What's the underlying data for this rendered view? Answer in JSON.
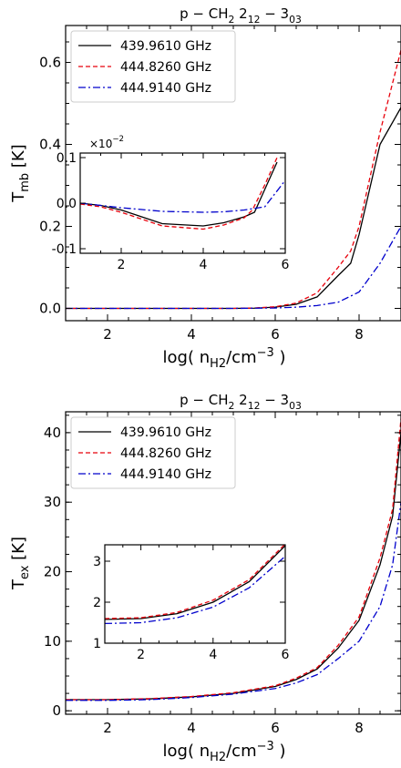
{
  "chart_data": [
    {
      "type": "line",
      "title": [
        "p − CH",
        "2",
        " 2",
        "12",
        " − 3",
        "03"
      ],
      "xlabel": [
        "log( n",
        "H",
        "2",
        "/cm",
        "−3",
        " )"
      ],
      "ylabel": [
        "T",
        "mb",
        " [K]"
      ],
      "xlim": [
        1,
        9
      ],
      "ylim": [
        -0.03,
        0.69
      ],
      "xticks": [
        2,
        4,
        6,
        8
      ],
      "xtick_labels": [
        "2",
        "4",
        "6",
        "8"
      ],
      "yticks": [
        0.0,
        0.2,
        0.4,
        0.6
      ],
      "ytick_labels": [
        "0.0",
        "0.2",
        "0.4",
        "0.6"
      ],
      "legend_position": "top-left",
      "series": [
        {
          "name": "439.9610 GHz",
          "color": "#000000",
          "dash": "solid",
          "x": [
            1,
            2,
            3,
            4,
            5,
            5.5,
            6,
            6.5,
            7,
            7.5,
            7.8,
            8,
            8.5,
            9
          ],
          "y": [
            0.0,
            0.0,
            0.0,
            0.0,
            0.0,
            0.0005,
            0.003,
            0.01,
            0.028,
            0.08,
            0.11,
            0.18,
            0.4,
            0.49
          ]
        },
        {
          "name": "444.8260 GHz",
          "color": "#e8000b",
          "dash": "dashed",
          "x": [
            1,
            2,
            3,
            4,
            5,
            5.5,
            6,
            6.5,
            7,
            7.5,
            7.8,
            8,
            8.5,
            9
          ],
          "y": [
            0.0,
            0.0,
            0.0,
            0.0,
            0.0,
            0.001,
            0.004,
            0.013,
            0.038,
            0.1,
            0.14,
            0.2,
            0.43,
            0.63
          ]
        },
        {
          "name": "444.9140 GHz",
          "color": "#0000cc",
          "dash": "dashdot",
          "x": [
            1,
            2,
            3,
            4,
            5,
            6,
            6.5,
            7,
            7.5,
            8,
            8.5,
            9
          ],
          "y": [
            0.0,
            0.0,
            0.0,
            0.0,
            0.0,
            0.001,
            0.003,
            0.007,
            0.015,
            0.04,
            0.11,
            0.2
          ]
        }
      ],
      "inset": {
        "xlim": [
          1,
          6
        ],
        "ylim": [
          -0.11,
          0.11
        ],
        "xticks": [
          2,
          4,
          6
        ],
        "xtick_labels": [
          "2",
          "4",
          "6"
        ],
        "yticks": [
          -0.1,
          0.0,
          0.1
        ],
        "ytick_labels": [
          "-0.1",
          "0.0",
          "0.1"
        ],
        "offset_label": [
          "×10",
          "−2"
        ],
        "series": [
          {
            "name": "439.9610 GHz",
            "x": [
              1,
              1.5,
              2,
              3,
              4,
              4.5,
              5,
              5.25,
              5.5,
              5.8
            ],
            "y": [
              0.0,
              -0.005,
              -0.015,
              -0.045,
              -0.05,
              -0.043,
              -0.03,
              -0.02,
              0.03,
              0.09
            ]
          },
          {
            "name": "444.8260 GHz",
            "x": [
              1,
              1.5,
              2,
              3,
              4,
              4.5,
              5,
              5.2,
              5.5,
              5.8
            ],
            "y": [
              -0.002,
              -0.008,
              -0.02,
              -0.05,
              -0.057,
              -0.048,
              -0.032,
              -0.015,
              0.04,
              0.1
            ]
          },
          {
            "name": "444.9140 GHz",
            "x": [
              1,
              2,
              3,
              4,
              4.5,
              5,
              5.5,
              6
            ],
            "y": [
              0.0,
              -0.01,
              -0.018,
              -0.02,
              -0.019,
              -0.015,
              -0.008,
              0.05
            ]
          }
        ]
      }
    },
    {
      "type": "line",
      "title": [
        "p − CH",
        "2",
        " 2",
        "12",
        " − 3",
        "03"
      ],
      "xlabel": [
        "log( n",
        "H",
        "2",
        "/cm",
        "−3",
        " )"
      ],
      "ylabel": [
        "T",
        "ex",
        " [K]"
      ],
      "xlim": [
        1,
        9
      ],
      "ylim": [
        -0.5,
        43
      ],
      "xticks": [
        2,
        4,
        6,
        8
      ],
      "xtick_labels": [
        "2",
        "4",
        "6",
        "8"
      ],
      "yticks": [
        0,
        10,
        20,
        30,
        40
      ],
      "ytick_labels": [
        "0",
        "10",
        "20",
        "30",
        "40"
      ],
      "legend_position": "top-left",
      "series": [
        {
          "name": "439.9610 GHz",
          "color": "#000000",
          "dash": "solid",
          "x": [
            1,
            2,
            3,
            4,
            5,
            6,
            6.5,
            7,
            7.5,
            8,
            8.5,
            8.8,
            9
          ],
          "y": [
            1.6,
            1.6,
            1.7,
            2.0,
            2.5,
            3.5,
            4.5,
            6.0,
            9.0,
            13.0,
            21.0,
            28.0,
            40.0
          ]
        },
        {
          "name": "444.8260 GHz",
          "color": "#e8000b",
          "dash": "dashed",
          "x": [
            1,
            2,
            3,
            4,
            5,
            6,
            6.5,
            7,
            7.5,
            8,
            8.5,
            8.8,
            9
          ],
          "y": [
            1.6,
            1.6,
            1.75,
            2.05,
            2.6,
            3.6,
            4.7,
            6.2,
            9.4,
            13.5,
            22.0,
            29.0,
            42.0
          ]
        },
        {
          "name": "444.9140 GHz",
          "color": "#0000cc",
          "dash": "dashdot",
          "x": [
            1,
            2,
            3,
            4,
            5,
            6,
            6.5,
            7,
            7.5,
            8,
            8.5,
            8.8,
            9
          ],
          "y": [
            1.5,
            1.5,
            1.6,
            1.9,
            2.4,
            3.2,
            4.0,
            5.2,
            7.5,
            10.0,
            15.0,
            21.0,
            30.0
          ]
        }
      ],
      "inset": {
        "xlim": [
          1,
          6
        ],
        "ylim": [
          1,
          3.4
        ],
        "xticks": [
          2,
          4,
          6
        ],
        "xtick_labels": [
          "2",
          "4",
          "6"
        ],
        "yticks": [
          1,
          2,
          3
        ],
        "ytick_labels": [
          "1",
          "2",
          "3"
        ],
        "series": [
          {
            "name": "439.9610 GHz",
            "x": [
              1,
              2,
              3,
              4,
              5,
              6
            ],
            "y": [
              1.58,
              1.6,
              1.72,
              2.0,
              2.5,
              3.38
            ]
          },
          {
            "name": "444.8260 GHz",
            "x": [
              1,
              2,
              3,
              4,
              5,
              6
            ],
            "y": [
              1.6,
              1.62,
              1.75,
              2.05,
              2.55,
              3.42
            ]
          },
          {
            "name": "444.9140 GHz",
            "x": [
              1,
              2,
              3,
              4,
              5,
              6
            ],
            "y": [
              1.48,
              1.5,
              1.62,
              1.88,
              2.35,
              3.12
            ]
          }
        ]
      }
    }
  ]
}
